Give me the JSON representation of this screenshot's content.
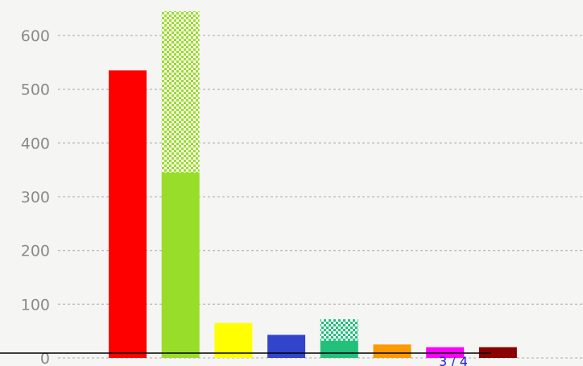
{
  "chart_data": {
    "type": "bar",
    "title": "",
    "xlabel": "",
    "ylabel": "",
    "ylim": [
      0,
      600
    ],
    "yticks": [
      0,
      100,
      200,
      300,
      400,
      500,
      600
    ],
    "grid": true,
    "grid_style": "dotted",
    "bars": [
      {
        "value": 535,
        "hatched_extra": 0,
        "color": "#ff0000"
      },
      {
        "value": 345,
        "hatched_extra": 300,
        "color": "#99dd2b"
      },
      {
        "value": 65,
        "hatched_extra": 0,
        "color": "#ffff00"
      },
      {
        "value": 43,
        "hatched_extra": 0,
        "color": "#3344cc"
      },
      {
        "value": 32,
        "hatched_extra": 40,
        "color": "#22c07a"
      },
      {
        "value": 25,
        "hatched_extra": 0,
        "color": "#ff9900"
      },
      {
        "value": 20,
        "hatched_extra": 0,
        "color": "#ff00ff"
      },
      {
        "value": 20,
        "hatched_extra": 0,
        "color": "#8b0000"
      }
    ]
  },
  "pager": {
    "label": "3 / 4",
    "color": "#1a1ad0"
  },
  "colors": {
    "background": "#f5f5f3",
    "grid": "#bbbbbb",
    "axis": "#000000"
  }
}
